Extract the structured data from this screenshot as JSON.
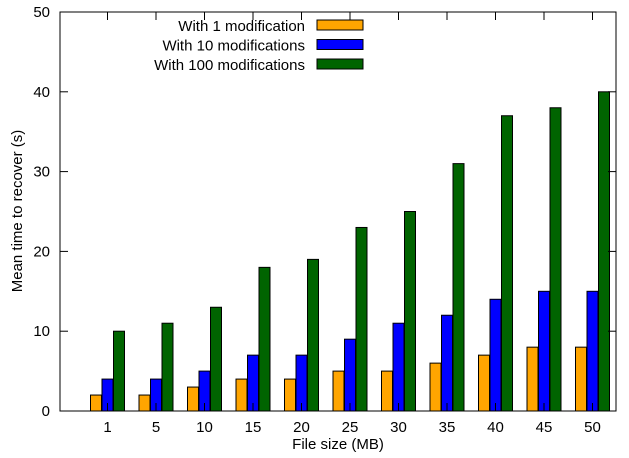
{
  "chart_data": {
    "type": "bar",
    "xlabel": "File size (MB)",
    "ylabel": "Mean time to recover (s)",
    "ylim": [
      0,
      50
    ],
    "yticks": [
      0,
      10,
      20,
      30,
      40,
      50
    ],
    "categories": [
      "1",
      "5",
      "10",
      "15",
      "20",
      "25",
      "30",
      "35",
      "40",
      "45",
      "50"
    ],
    "series": [
      {
        "name": "With 1 modification",
        "color": "#ffa500",
        "values": [
          2,
          2,
          3,
          4,
          4,
          5,
          5,
          6,
          7,
          8,
          8
        ]
      },
      {
        "name": "With 10 modifications",
        "color": "#0000ff",
        "values": [
          4,
          4,
          5,
          7,
          7,
          9,
          11,
          12,
          14,
          15,
          15
        ]
      },
      {
        "name": "With 100 modifications",
        "color": "#006400",
        "values": [
          10,
          11,
          13,
          18,
          19,
          23,
          25,
          31,
          37,
          38,
          40
        ]
      }
    ],
    "legend_position": "top-left",
    "grid": false
  }
}
